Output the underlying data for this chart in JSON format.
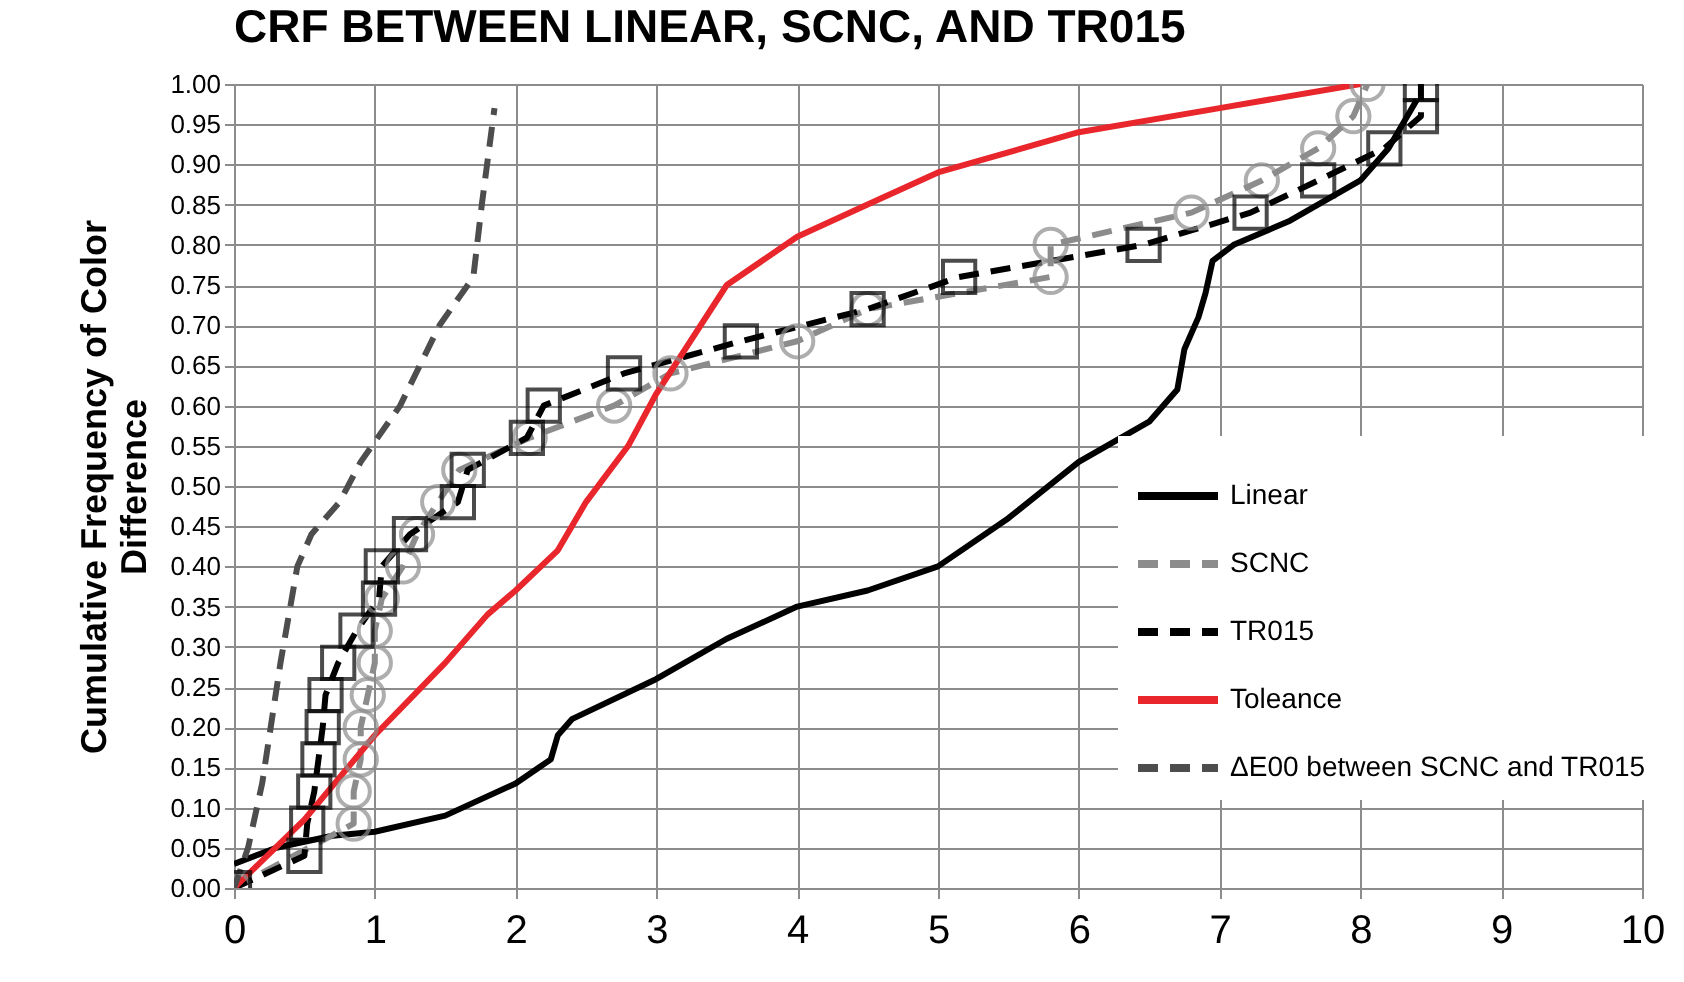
{
  "chart_data": {
    "type": "line",
    "title": "CRF BETWEEN LINEAR, SCNC, AND TR015",
    "ylabel": "Cumulative Frequency of Color Difference",
    "xlim": [
      0,
      10
    ],
    "xticks": [
      0,
      1,
      2,
      3,
      4,
      5,
      6,
      7,
      8,
      9,
      10
    ],
    "ylim": [
      0,
      1
    ],
    "yticks": [
      {
        "value": 0,
        "label": "0.00"
      },
      {
        "value": 0.05,
        "label": "0.05"
      },
      {
        "value": 0.1,
        "label": "0.10"
      },
      {
        "value": 0.15,
        "label": "0.15"
      },
      {
        "value": 0.2,
        "label": "0.20"
      },
      {
        "value": 0.25,
        "label": "0.25"
      },
      {
        "value": 0.3,
        "label": "0.30"
      },
      {
        "value": 0.35,
        "label": "0.35"
      },
      {
        "value": 0.4,
        "label": "0.40"
      },
      {
        "value": 0.45,
        "label": "0.45"
      },
      {
        "value": 0.5,
        "label": "0.50"
      },
      {
        "value": 0.55,
        "label": "0.55"
      },
      {
        "value": 0.6,
        "label": "0.60"
      },
      {
        "value": 0.65,
        "label": "0.65"
      },
      {
        "value": 0.7,
        "label": "0.70"
      },
      {
        "value": 0.75,
        "label": "0.75"
      },
      {
        "value": 0.8,
        "label": "0.80"
      },
      {
        "value": 0.85,
        "label": "0.85"
      },
      {
        "value": 0.9,
        "label": "0.90"
      },
      {
        "value": 0.95,
        "label": "0.95"
      },
      {
        "value": 1,
        "label": "1.00"
      }
    ],
    "grid": true,
    "legend": "bottom right",
    "series": [
      {
        "name": "Linear",
        "color": "#000000",
        "marker": "none",
        "line_style": "solid",
        "x": [
          0,
          0.3,
          0.7,
          1,
          1.5,
          2,
          2.25,
          2.3,
          2.4,
          3,
          3.5,
          4,
          4.5,
          5,
          5.5,
          6,
          6.5,
          6.7,
          6.75,
          6.85,
          6.9,
          6.95,
          7.1,
          7.5,
          8,
          8.2,
          8.4
        ],
        "values": [
          0.03,
          0.05,
          0.065,
          0.07,
          0.09,
          0.13,
          0.16,
          0.19,
          0.21,
          0.26,
          0.31,
          0.35,
          0.37,
          0.4,
          0.46,
          0.53,
          0.58,
          0.62,
          0.67,
          0.71,
          0.74,
          0.78,
          0.8,
          0.83,
          0.88,
          0.92,
          0.98
        ]
      },
      {
        "name": "SCNC",
        "color": "#8c8c8c",
        "marker": "circle",
        "line_style": "dashed",
        "x": [
          0,
          0.85,
          0.85,
          0.9,
          0.9,
          0.95,
          1,
          1,
          1.05,
          1.2,
          1.3,
          1.45,
          1.6,
          2.1,
          2.7,
          3.1,
          4,
          4.5,
          5.8,
          5.8,
          6.8,
          7.3,
          7.7,
          7.95,
          8.05
        ],
        "values": [
          0,
          0.08,
          0.12,
          0.16,
          0.2,
          0.24,
          0.28,
          0.32,
          0.36,
          0.4,
          0.44,
          0.48,
          0.52,
          0.56,
          0.6,
          0.64,
          0.68,
          0.72,
          0.76,
          0.8,
          0.84,
          0.88,
          0.92,
          0.96,
          1
        ]
      },
      {
        "name": "TR015",
        "color": "#000000",
        "marker": "square",
        "line_style": "dashed",
        "x": [
          0,
          0.5,
          0.52,
          0.57,
          0.6,
          0.63,
          0.65,
          0.74,
          0.87,
          1.03,
          1.05,
          1.25,
          1.59,
          1.66,
          2.08,
          2.2,
          2.77,
          3.6,
          4.5,
          5.15,
          6.46,
          7.22,
          7.7,
          8.17,
          8.43,
          8.43
        ],
        "values": [
          0,
          0.04,
          0.08,
          0.12,
          0.16,
          0.2,
          0.24,
          0.28,
          0.32,
          0.36,
          0.4,
          0.44,
          0.48,
          0.52,
          0.56,
          0.6,
          0.64,
          0.68,
          0.72,
          0.76,
          0.8,
          0.84,
          0.88,
          0.92,
          0.96,
          1
        ]
      },
      {
        "name": "Toleance",
        "color": "#e8262b",
        "marker": "none",
        "line_style": "solid",
        "x": [
          0,
          0.5,
          1,
          1.5,
          1.8,
          2,
          2.3,
          2.5,
          2.8,
          3,
          3.5,
          4,
          4.5,
          5,
          6,
          7,
          8
        ],
        "values": [
          0,
          0.085,
          0.19,
          0.28,
          0.34,
          0.37,
          0.42,
          0.48,
          0.55,
          0.615,
          0.75,
          0.81,
          0.85,
          0.89,
          0.94,
          0.97,
          1
        ]
      },
      {
        "name": "ΔE00 between SCNC and TR015",
        "color": "#4d4d4d",
        "marker": "none",
        "line_style": "dashed",
        "x": [
          0,
          0.1,
          0.2,
          0.33,
          0.45,
          0.55,
          0.75,
          0.9,
          1.18,
          1.46,
          1.7,
          1.76,
          1.85
        ],
        "values": [
          0,
          0.05,
          0.13,
          0.28,
          0.4,
          0.44,
          0.48,
          0.53,
          0.6,
          0.7,
          0.76,
          0.85,
          0.97
        ]
      }
    ]
  }
}
